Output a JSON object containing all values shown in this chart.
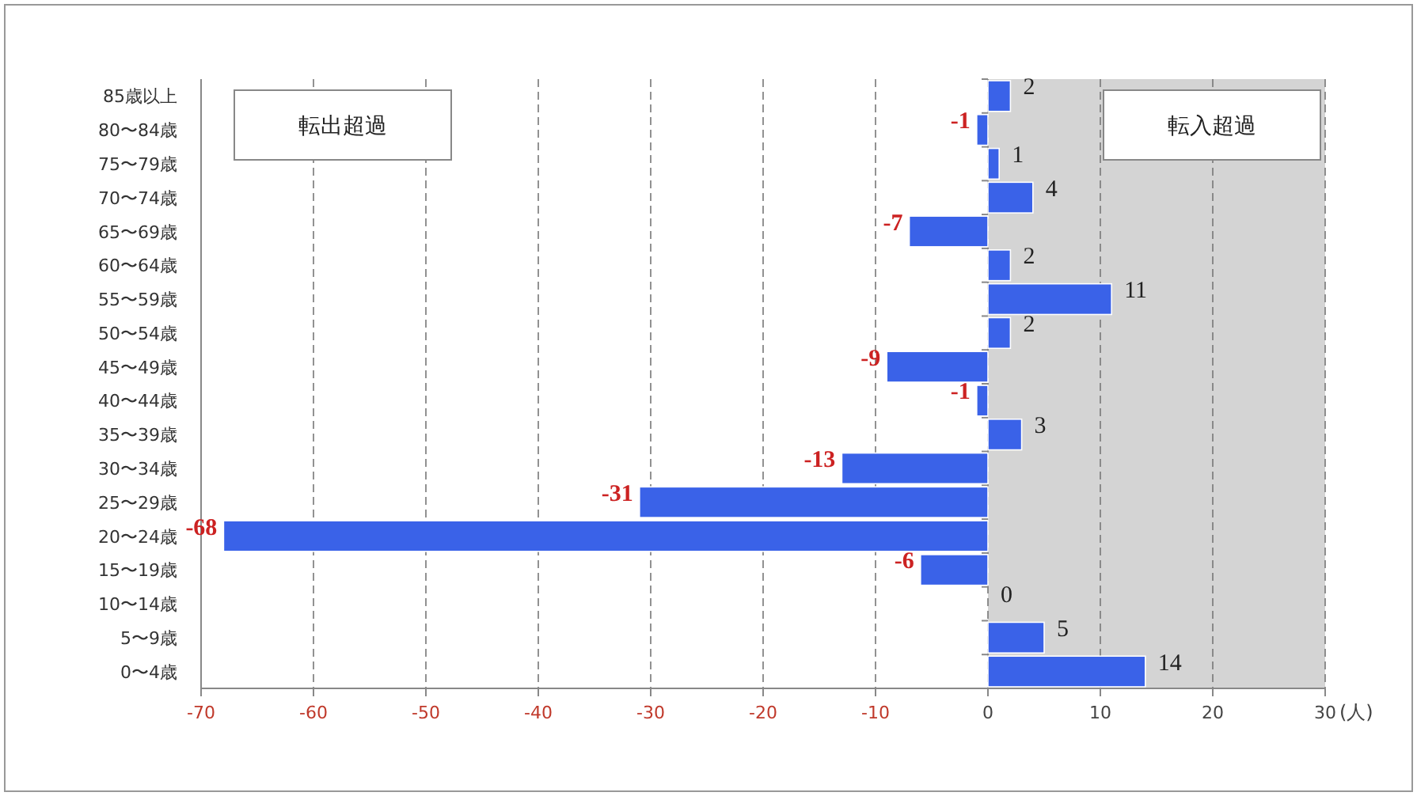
{
  "chart_data": {
    "type": "bar",
    "orientation": "horizontal",
    "categories": [
      "85歳以上",
      "80〜84歳",
      "75〜79歳",
      "70〜74歳",
      "65〜69歳",
      "60〜64歳",
      "55〜59歳",
      "50〜54歳",
      "45〜49歳",
      "40〜44歳",
      "35〜39歳",
      "30〜34歳",
      "25〜29歳",
      "20〜24歳",
      "15〜19歳",
      "10〜14歳",
      "5〜9歳",
      "0〜4歳"
    ],
    "values": [
      2,
      -1,
      1,
      4,
      -7,
      2,
      11,
      2,
      -9,
      -1,
      3,
      -13,
      -31,
      -68,
      -6,
      0,
      5,
      14
    ],
    "color": "#3a62e8",
    "xlim": [
      -70,
      30
    ],
    "xticks": [
      -70,
      -60,
      -50,
      -40,
      -30,
      -20,
      -10,
      0,
      10,
      20,
      30
    ],
    "xlabel": "(人)",
    "bands": [
      {
        "axis": "x",
        "from": 0,
        "to": 30,
        "color": "#d4d4d4"
      }
    ],
    "annotations": [
      "転出超過",
      "転入超過"
    ],
    "data_labels": true,
    "grid": "x"
  }
}
